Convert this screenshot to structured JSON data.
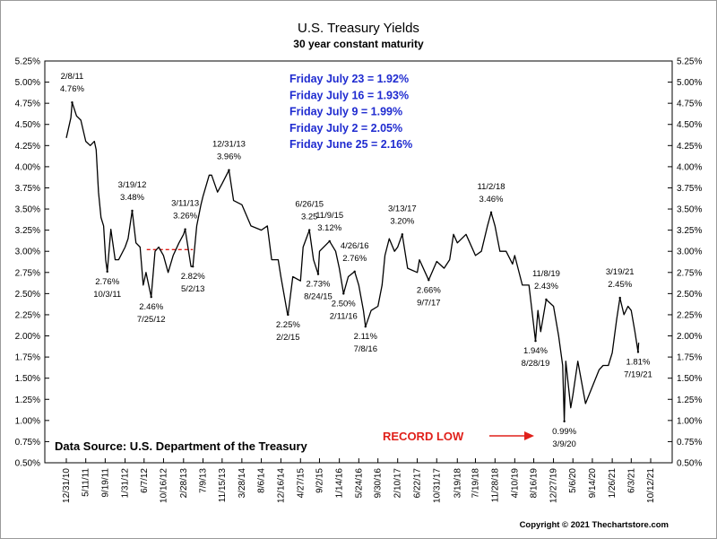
{
  "chart_data": {
    "type": "line",
    "title": "U.S. Treasury Yields",
    "subtitle": "30 year constant maturity",
    "ylim": [
      0.5,
      5.25
    ],
    "y_ticks": [
      "5.25%",
      "5.00%",
      "4.75%",
      "4.50%",
      "4.25%",
      "4.00%",
      "3.75%",
      "3.50%",
      "3.25%",
      "3.00%",
      "2.75%",
      "2.50%",
      "2.25%",
      "2.00%",
      "1.75%",
      "1.50%",
      "1.25%",
      "1.00%",
      "0.75%",
      "0.50%"
    ],
    "x_ticks": [
      "12/31/10",
      "5/11/11",
      "9/19/11",
      "1/31/12",
      "6/7/12",
      "10/16/12",
      "2/28/13",
      "7/9/13",
      "11/15/13",
      "3/28/14",
      "8/6/14",
      "12/16/14",
      "4/27/15",
      "9/2/15",
      "1/14/16",
      "5/24/16",
      "9/30/16",
      "2/10/17",
      "6/22/17",
      "10/31/17",
      "3/19/18",
      "7/19/18",
      "11/28/18",
      "4/10/19",
      "8/16/19",
      "12/27/19",
      "5/6/20",
      "9/14/20",
      "1/26/21",
      "6/3/21",
      "10/12/21"
    ],
    "x_range": [
      "12/31/10",
      "10/12/21"
    ],
    "series": [
      {
        "values": [
          [
            "12/31/10",
            4.34
          ],
          [
            "1/31/11",
            4.58
          ],
          [
            "2/8/11",
            4.76
          ],
          [
            "3/10/11",
            4.6
          ],
          [
            "4/8/11",
            4.55
          ],
          [
            "5/11/11",
            4.3
          ],
          [
            "6/10/11",
            4.25
          ],
          [
            "7/8/11",
            4.3
          ],
          [
            "7/20/11",
            4.2
          ],
          [
            "8/5/11",
            3.7
          ],
          [
            "8/22/11",
            3.4
          ],
          [
            "9/8/11",
            3.3
          ],
          [
            "9/22/11",
            2.9
          ],
          [
            "10/3/11",
            2.76
          ],
          [
            "10/27/11",
            3.26
          ],
          [
            "11/25/11",
            2.9
          ],
          [
            "12/19/11",
            2.9
          ],
          [
            "1/31/12",
            3.05
          ],
          [
            "2/20/12",
            3.15
          ],
          [
            "3/19/12",
            3.48
          ],
          [
            "4/13/12",
            3.1
          ],
          [
            "5/11/12",
            3.05
          ],
          [
            "6/1/12",
            2.6
          ],
          [
            "6/20/12",
            2.75
          ],
          [
            "7/25/12",
            2.46
          ],
          [
            "8/20/12",
            3.0
          ],
          [
            "9/14/12",
            3.05
          ],
          [
            "10/16/12",
            2.95
          ],
          [
            "11/16/12",
            2.75
          ],
          [
            "12/20/12",
            2.95
          ],
          [
            "1/28/13",
            3.1
          ],
          [
            "2/28/13",
            3.2
          ],
          [
            "3/11/13",
            3.26
          ],
          [
            "4/19/13",
            2.82
          ],
          [
            "5/2/13",
            2.82
          ],
          [
            "5/28/13",
            3.3
          ],
          [
            "6/25/13",
            3.55
          ],
          [
            "7/9/13",
            3.65
          ],
          [
            "8/20/13",
            3.9
          ],
          [
            "9/5/13",
            3.9
          ],
          [
            "10/15/13",
            3.7
          ],
          [
            "11/15/13",
            3.8
          ],
          [
            "12/31/13",
            3.96
          ],
          [
            "1/31/14",
            3.6
          ],
          [
            "3/28/14",
            3.55
          ],
          [
            "5/28/14",
            3.3
          ],
          [
            "8/6/14",
            3.25
          ],
          [
            "9/16/14",
            3.3
          ],
          [
            "10/15/14",
            2.9
          ],
          [
            "11/28/14",
            2.9
          ],
          [
            "12/16/14",
            2.7
          ],
          [
            "1/30/15",
            2.25
          ],
          [
            "2/2/15",
            2.25
          ],
          [
            "3/6/15",
            2.7
          ],
          [
            "4/27/15",
            2.65
          ],
          [
            "5/15/15",
            3.05
          ],
          [
            "6/26/15",
            3.25
          ],
          [
            "7/24/15",
            2.9
          ],
          [
            "8/24/15",
            2.73
          ],
          [
            "9/2/15",
            3.0
          ],
          [
            "11/9/15",
            3.12
          ],
          [
            "12/20/15",
            3.0
          ],
          [
            "1/14/16",
            2.8
          ],
          [
            "2/11/16",
            2.5
          ],
          [
            "3/14/16",
            2.7
          ],
          [
            "4/26/16",
            2.76
          ],
          [
            "5/24/16",
            2.6
          ],
          [
            "6/24/16",
            2.3
          ],
          [
            "7/8/16",
            2.11
          ],
          [
            "8/15/16",
            2.3
          ],
          [
            "9/30/16",
            2.35
          ],
          [
            "10/28/16",
            2.6
          ],
          [
            "11/16/16",
            2.95
          ],
          [
            "12/15/16",
            3.15
          ],
          [
            "1/20/17",
            3.0
          ],
          [
            "2/10/17",
            3.05
          ],
          [
            "3/13/17",
            3.2
          ],
          [
            "4/18/17",
            2.8
          ],
          [
            "6/22/17",
            2.75
          ],
          [
            "7/7/17",
            2.9
          ],
          [
            "9/7/17",
            2.66
          ],
          [
            "10/31/17",
            2.88
          ],
          [
            "12/20/17",
            2.8
          ],
          [
            "1/26/18",
            2.9
          ],
          [
            "2/21/18",
            3.2
          ],
          [
            "3/19/18",
            3.1
          ],
          [
            "5/17/18",
            3.2
          ],
          [
            "7/19/18",
            2.95
          ],
          [
            "8/28/18",
            3.0
          ],
          [
            "10/8/18",
            3.3
          ],
          [
            "11/2/18",
            3.46
          ],
          [
            "11/28/18",
            3.3
          ],
          [
            "12/31/18",
            3.0
          ],
          [
            "2/11/19",
            3.0
          ],
          [
            "3/26/19",
            2.85
          ],
          [
            "4/10/19",
            2.95
          ],
          [
            "5/31/19",
            2.6
          ],
          [
            "7/15/19",
            2.6
          ],
          [
            "8/28/19",
            1.94
          ],
          [
            "9/13/19",
            2.3
          ],
          [
            "10/2/19",
            2.05
          ],
          [
            "11/8/19",
            2.43
          ],
          [
            "12/27/19",
            2.35
          ],
          [
            "1/31/20",
            2.0
          ],
          [
            "2/27/20",
            1.65
          ],
          [
            "3/9/20",
            0.99
          ],
          [
            "3/19/20",
            1.7
          ],
          [
            "4/21/20",
            1.15
          ],
          [
            "5/6/20",
            1.3
          ],
          [
            "6/8/20",
            1.7
          ],
          [
            "7/30/20",
            1.2
          ],
          [
            "9/14/20",
            1.4
          ],
          [
            "10/30/20",
            1.6
          ],
          [
            "11/25/20",
            1.65
          ],
          [
            "12/31/20",
            1.65
          ],
          [
            "1/26/21",
            1.8
          ],
          [
            "2/25/21",
            2.2
          ],
          [
            "3/19/21",
            2.45
          ],
          [
            "4/15/21",
            2.25
          ],
          [
            "5/12/21",
            2.35
          ],
          [
            "6/3/21",
            2.3
          ],
          [
            "6/28/21",
            2.05
          ],
          [
            "7/19/21",
            1.81
          ],
          [
            "7/23/21",
            1.92
          ]
        ]
      }
    ],
    "reference_line": {
      "from": "6/25/12",
      "to": "5/2/13",
      "y": 3.02,
      "color": "#e0201a"
    },
    "annotations": [
      {
        "date": "2/8/11",
        "value": 4.76,
        "label_date": "2/8/11",
        "label_value": "4.76%",
        "pos": "above"
      },
      {
        "date": "10/3/11",
        "value": 2.76,
        "label_date": "10/3/11",
        "label_value": "2.76%",
        "pos": "below"
      },
      {
        "date": "3/19/12",
        "value": 3.48,
        "label_date": "3/19/12",
        "label_value": "3.48%",
        "pos": "above"
      },
      {
        "date": "7/25/12",
        "value": 2.46,
        "label_date": "7/25/12",
        "label_value": "2.46%",
        "pos": "below"
      },
      {
        "date": "3/11/13",
        "value": 3.26,
        "label_date": "3/11/13",
        "label_value": "3.26%",
        "pos": "above"
      },
      {
        "date": "5/2/13",
        "value": 2.82,
        "label_date": "5/2/13",
        "label_value": "2.82%",
        "pos": "below"
      },
      {
        "date": "12/31/13",
        "value": 3.96,
        "label_date": "12/31/13",
        "label_value": "3.96%",
        "pos": "above"
      },
      {
        "date": "2/2/15",
        "value": 2.25,
        "label_date": "2/2/15",
        "label_value": "2.25%",
        "pos": "below"
      },
      {
        "date": "6/26/15",
        "value": 3.25,
        "label_date": "6/26/15",
        "label_value": "3.25",
        "pos": "above"
      },
      {
        "date": "8/24/15",
        "value": 2.73,
        "label_date": "8/24/15",
        "label_value": "2.73%",
        "pos": "below"
      },
      {
        "date": "11/9/15",
        "value": 3.12,
        "label_date": "11/9/15",
        "label_value": "3.12%",
        "pos": "above"
      },
      {
        "date": "2/11/16",
        "value": 2.5,
        "label_date": "2/11/16",
        "label_value": "2.50%",
        "pos": "below"
      },
      {
        "date": "4/26/16",
        "value": 2.76,
        "label_date": "4/26/16",
        "label_value": "2.76%",
        "pos": "above"
      },
      {
        "date": "7/8/16",
        "value": 2.11,
        "label_date": "7/8/16",
        "label_value": "2.11%",
        "pos": "below"
      },
      {
        "date": "3/13/17",
        "value": 3.2,
        "label_date": "3/13/17",
        "label_value": "3.20%",
        "pos": "above"
      },
      {
        "date": "9/7/17",
        "value": 2.66,
        "label_date": "9/7/17",
        "label_value": "2.66%",
        "pos": "below"
      },
      {
        "date": "11/2/18",
        "value": 3.46,
        "label_date": "11/2/18",
        "label_value": "3.46%",
        "pos": "above"
      },
      {
        "date": "8/28/19",
        "value": 1.94,
        "label_date": "8/28/19",
        "label_value": "1.94%",
        "pos": "below"
      },
      {
        "date": "11/8/19",
        "value": 2.43,
        "label_date": "11/8/19",
        "label_value": "2.43%",
        "pos": "above"
      },
      {
        "date": "3/9/20",
        "value": 0.99,
        "label_date": "3/9/20",
        "label_value": "0.99%",
        "pos": "below"
      },
      {
        "date": "3/19/21",
        "value": 2.45,
        "label_date": "3/19/21",
        "label_value": "2.45%",
        "pos": "above"
      },
      {
        "date": "7/19/21",
        "value": 1.81,
        "label_date": "7/19/21",
        "label_value": "1.81%",
        "pos": "below"
      }
    ],
    "friday_readings": [
      "Friday July 23 = 1.92%",
      "Friday July 16 = 1.93%",
      "Friday July 9 = 1.99%",
      "Friday July 2 = 2.05%",
      "Friday June 25 = 2.16%"
    ],
    "record_low_label": "RECORD LOW",
    "source": "Data Source:  U.S. Department of the Treasury",
    "copyright": "Copyright © 2021 Thechartstore.com",
    "colors": {
      "line": "#000000",
      "readings": "#1f2bd0",
      "record": "#e0201a",
      "reference": "#e0201a"
    },
    "grid": false
  }
}
